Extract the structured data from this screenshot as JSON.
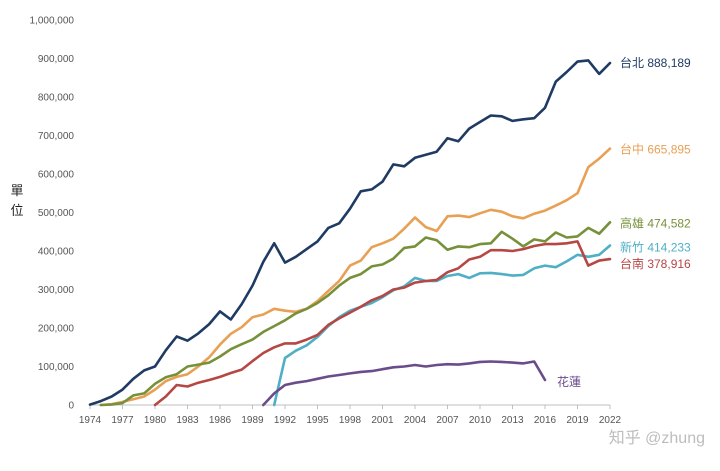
{
  "chart_data": {
    "type": "line",
    "ylabel": "單位",
    "ylim": [
      0,
      1000000
    ],
    "xlim": [
      1974,
      2022
    ],
    "y_ticks": [
      "0",
      "100,000",
      "200,000",
      "300,000",
      "400,000",
      "500,000",
      "600,000",
      "700,000",
      "800,000",
      "900,000",
      "1,000,000"
    ],
    "y_tick_values": [
      0,
      100000,
      200000,
      300000,
      400000,
      500000,
      600000,
      700000,
      800000,
      900000,
      1000000
    ],
    "x_ticks": [
      "1974",
      "1977",
      "1980",
      "1983",
      "1986",
      "1989",
      "1992",
      "1995",
      "1998",
      "2001",
      "2004",
      "2007",
      "2010",
      "2013",
      "2016",
      "2019",
      "2022"
    ],
    "x_tick_values": [
      1974,
      1977,
      1980,
      1983,
      1986,
      1989,
      1992,
      1995,
      1998,
      2001,
      2004,
      2007,
      2010,
      2013,
      2016,
      2019,
      2022
    ],
    "grid": false,
    "series": [
      {
        "name": "台北",
        "end_label": "台北 888,189",
        "color": "#1f3b63",
        "x": [
          1974,
          1975,
          1976,
          1977,
          1978,
          1979,
          1980,
          1981,
          1982,
          1983,
          1984,
          1985,
          1986,
          1987,
          1988,
          1989,
          1990,
          1991,
          1992,
          1993,
          1994,
          1995,
          1996,
          1997,
          1998,
          1999,
          2000,
          2001,
          2002,
          2003,
          2004,
          2005,
          2006,
          2007,
          2008,
          2009,
          2010,
          2011,
          2012,
          2013,
          2014,
          2015,
          2016,
          2017,
          2018,
          2019,
          2020,
          2021,
          2022
        ],
        "y": [
          1000,
          10000,
          22000,
          40000,
          68000,
          90000,
          100000,
          142000,
          178000,
          167000,
          186000,
          210000,
          243000,
          222000,
          262000,
          310000,
          372000,
          420000,
          370000,
          385000,
          405000,
          425000,
          460000,
          472000,
          510000,
          555000,
          560000,
          580000,
          625000,
          620000,
          642000,
          650000,
          658000,
          693000,
          685000,
          718000,
          735000,
          752000,
          750000,
          738000,
          742000,
          745000,
          772000,
          840000,
          865000,
          892000,
          895000,
          860000,
          888189
        ]
      },
      {
        "name": "台中",
        "end_label": "台中 665,895",
        "color": "#e8a055",
        "x": [
          1975,
          1976,
          1977,
          1978,
          1979,
          1980,
          1981,
          1982,
          1983,
          1984,
          1985,
          1986,
          1987,
          1988,
          1989,
          1990,
          1991,
          1992,
          1993,
          1994,
          1995,
          1996,
          1997,
          1998,
          1999,
          2000,
          2001,
          2002,
          2003,
          2004,
          2005,
          2006,
          2007,
          2008,
          2009,
          2010,
          2011,
          2012,
          2013,
          2014,
          2015,
          2016,
          2017,
          2018,
          2019,
          2020,
          2021,
          2022
        ],
        "y": [
          0,
          2000,
          8000,
          15000,
          22000,
          40000,
          62000,
          73000,
          80000,
          100000,
          124000,
          157000,
          185000,
          202000,
          228000,
          235000,
          250000,
          245000,
          242000,
          250000,
          270000,
          296000,
          322000,
          362000,
          375000,
          410000,
          420000,
          432000,
          458000,
          487000,
          462000,
          452000,
          490000,
          492000,
          488000,
          498000,
          507000,
          502000,
          490000,
          485000,
          497000,
          505000,
          518000,
          532000,
          550000,
          618000,
          640000,
          665895
        ]
      },
      {
        "name": "高雄",
        "end_label": "高雄 474,582",
        "color": "#77913a",
        "x": [
          1975,
          1976,
          1977,
          1978,
          1979,
          1980,
          1981,
          1982,
          1983,
          1984,
          1985,
          1986,
          1987,
          1988,
          1989,
          1990,
          1991,
          1992,
          1993,
          1994,
          1995,
          1996,
          1997,
          1998,
          1999,
          2000,
          2001,
          2002,
          2003,
          2004,
          2005,
          2006,
          2007,
          2008,
          2009,
          2010,
          2011,
          2012,
          2013,
          2014,
          2015,
          2016,
          2017,
          2018,
          2019,
          2020,
          2021,
          2022
        ],
        "y": [
          0,
          1000,
          5000,
          25000,
          30000,
          55000,
          72000,
          80000,
          100000,
          105000,
          110000,
          126000,
          145000,
          158000,
          170000,
          190000,
          205000,
          220000,
          238000,
          250000,
          265000,
          285000,
          310000,
          330000,
          340000,
          360000,
          365000,
          380000,
          408000,
          412000,
          435000,
          428000,
          403000,
          412000,
          410000,
          418000,
          420000,
          450000,
          432000,
          412000,
          430000,
          425000,
          448000,
          435000,
          438000,
          460000,
          445000,
          474582
        ]
      },
      {
        "name": "新竹",
        "end_label": "新竹 414,233",
        "color": "#4eafc5",
        "x": [
          1991,
          1992,
          1993,
          1994,
          1995,
          1996,
          1997,
          1998,
          1999,
          2000,
          2001,
          2002,
          2003,
          2004,
          2005,
          2006,
          2007,
          2008,
          2009,
          2010,
          2011,
          2012,
          2013,
          2014,
          2015,
          2016,
          2017,
          2018,
          2019,
          2020,
          2021,
          2022
        ],
        "y": [
          0,
          122000,
          141000,
          155000,
          177000,
          205000,
          228000,
          245000,
          255000,
          265000,
          280000,
          298000,
          308000,
          330000,
          322000,
          322000,
          335000,
          340000,
          330000,
          342000,
          343000,
          340000,
          336000,
          338000,
          355000,
          362000,
          358000,
          373000,
          390000,
          385000,
          390000,
          414233
        ]
      },
      {
        "name": "台南",
        "end_label": "台南 378,916",
        "color": "#b54744",
        "x": [
          1980,
          1981,
          1982,
          1983,
          1984,
          1985,
          1986,
          1987,
          1988,
          1989,
          1990,
          1991,
          1992,
          1993,
          1994,
          1995,
          1996,
          1997,
          1998,
          1999,
          2000,
          2001,
          2002,
          2003,
          2004,
          2005,
          2006,
          2007,
          2008,
          2009,
          2010,
          2011,
          2012,
          2013,
          2014,
          2015,
          2016,
          2017,
          2018,
          2019,
          2020,
          2021,
          2022
        ],
        "y": [
          0,
          22000,
          52000,
          48000,
          58000,
          65000,
          73000,
          83000,
          92000,
          114000,
          135000,
          150000,
          160000,
          160000,
          170000,
          182000,
          208000,
          225000,
          240000,
          255000,
          272000,
          283000,
          300000,
          305000,
          318000,
          322000,
          325000,
          345000,
          355000,
          378000,
          385000,
          402000,
          402000,
          400000,
          405000,
          413000,
          418000,
          418000,
          420000,
          425000,
          362000,
          375000,
          378916
        ]
      },
      {
        "name": "花蓮",
        "end_label": "花蓮",
        "color": "#6a4c8a",
        "x": [
          1990,
          1991,
          1992,
          1993,
          1994,
          1995,
          1996,
          1997,
          1998,
          1999,
          2000,
          2001,
          2002,
          2003,
          2004,
          2005,
          2006,
          2007,
          2008,
          2009,
          2010,
          2011,
          2012,
          2013,
          2014,
          2015,
          2016
        ],
        "y": [
          0,
          30000,
          52000,
          58000,
          62000,
          68000,
          74000,
          78000,
          82000,
          86000,
          88000,
          93000,
          98000,
          100000,
          104000,
          100000,
          104000,
          106000,
          105000,
          108000,
          112000,
          113000,
          112000,
          110000,
          108000,
          113000,
          65000
        ]
      }
    ]
  },
  "watermark": "知乎 @zhung"
}
